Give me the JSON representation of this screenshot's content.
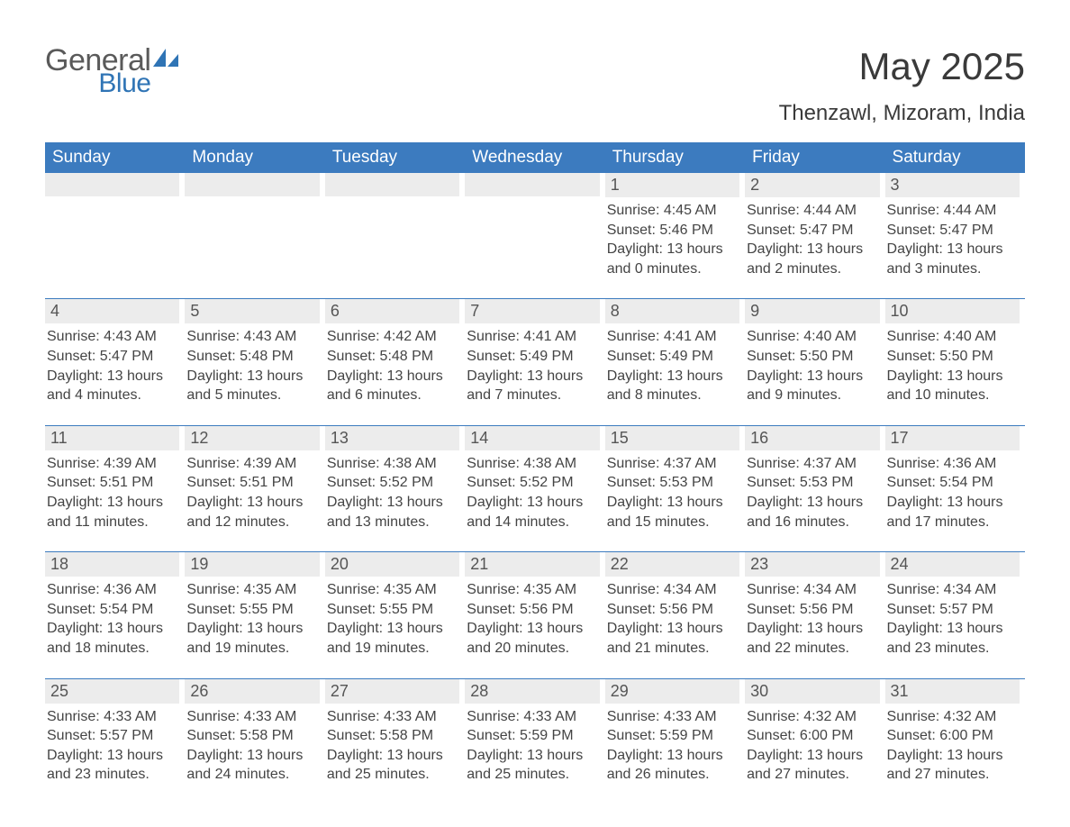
{
  "logo": {
    "general": "General",
    "blue": "Blue"
  },
  "title": "May 2025",
  "subtitle": "Thenzawl, Mizoram, India",
  "colors": {
    "header_bg": "#3c7bbf",
    "header_text": "#ffffff",
    "daynum_bg": "#ececec",
    "week_border": "#3c7bbf",
    "body_text": "#444444",
    "title_text": "#3a3a3a",
    "logo_gray": "#5a5a5a",
    "logo_blue": "#2f74b5",
    "page_bg": "#ffffff"
  },
  "typography": {
    "title_fontsize": 42,
    "subtitle_fontsize": 24,
    "weekday_fontsize": 19,
    "daynum_fontsize": 18,
    "body_fontsize": 16
  },
  "weekdays": [
    "Sunday",
    "Monday",
    "Tuesday",
    "Wednesday",
    "Thursday",
    "Friday",
    "Saturday"
  ],
  "weeks": [
    [
      null,
      null,
      null,
      null,
      {
        "n": "1",
        "sr": "Sunrise: 4:45 AM",
        "ss": "Sunset: 5:46 PM",
        "d1": "Daylight: 13 hours",
        "d2": "and 0 minutes."
      },
      {
        "n": "2",
        "sr": "Sunrise: 4:44 AM",
        "ss": "Sunset: 5:47 PM",
        "d1": "Daylight: 13 hours",
        "d2": "and 2 minutes."
      },
      {
        "n": "3",
        "sr": "Sunrise: 4:44 AM",
        "ss": "Sunset: 5:47 PM",
        "d1": "Daylight: 13 hours",
        "d2": "and 3 minutes."
      }
    ],
    [
      {
        "n": "4",
        "sr": "Sunrise: 4:43 AM",
        "ss": "Sunset: 5:47 PM",
        "d1": "Daylight: 13 hours",
        "d2": "and 4 minutes."
      },
      {
        "n": "5",
        "sr": "Sunrise: 4:43 AM",
        "ss": "Sunset: 5:48 PM",
        "d1": "Daylight: 13 hours",
        "d2": "and 5 minutes."
      },
      {
        "n": "6",
        "sr": "Sunrise: 4:42 AM",
        "ss": "Sunset: 5:48 PM",
        "d1": "Daylight: 13 hours",
        "d2": "and 6 minutes."
      },
      {
        "n": "7",
        "sr": "Sunrise: 4:41 AM",
        "ss": "Sunset: 5:49 PM",
        "d1": "Daylight: 13 hours",
        "d2": "and 7 minutes."
      },
      {
        "n": "8",
        "sr": "Sunrise: 4:41 AM",
        "ss": "Sunset: 5:49 PM",
        "d1": "Daylight: 13 hours",
        "d2": "and 8 minutes."
      },
      {
        "n": "9",
        "sr": "Sunrise: 4:40 AM",
        "ss": "Sunset: 5:50 PM",
        "d1": "Daylight: 13 hours",
        "d2": "and 9 minutes."
      },
      {
        "n": "10",
        "sr": "Sunrise: 4:40 AM",
        "ss": "Sunset: 5:50 PM",
        "d1": "Daylight: 13 hours",
        "d2": "and 10 minutes."
      }
    ],
    [
      {
        "n": "11",
        "sr": "Sunrise: 4:39 AM",
        "ss": "Sunset: 5:51 PM",
        "d1": "Daylight: 13 hours",
        "d2": "and 11 minutes."
      },
      {
        "n": "12",
        "sr": "Sunrise: 4:39 AM",
        "ss": "Sunset: 5:51 PM",
        "d1": "Daylight: 13 hours",
        "d2": "and 12 minutes."
      },
      {
        "n": "13",
        "sr": "Sunrise: 4:38 AM",
        "ss": "Sunset: 5:52 PM",
        "d1": "Daylight: 13 hours",
        "d2": "and 13 minutes."
      },
      {
        "n": "14",
        "sr": "Sunrise: 4:38 AM",
        "ss": "Sunset: 5:52 PM",
        "d1": "Daylight: 13 hours",
        "d2": "and 14 minutes."
      },
      {
        "n": "15",
        "sr": "Sunrise: 4:37 AM",
        "ss": "Sunset: 5:53 PM",
        "d1": "Daylight: 13 hours",
        "d2": "and 15 minutes."
      },
      {
        "n": "16",
        "sr": "Sunrise: 4:37 AM",
        "ss": "Sunset: 5:53 PM",
        "d1": "Daylight: 13 hours",
        "d2": "and 16 minutes."
      },
      {
        "n": "17",
        "sr": "Sunrise: 4:36 AM",
        "ss": "Sunset: 5:54 PM",
        "d1": "Daylight: 13 hours",
        "d2": "and 17 minutes."
      }
    ],
    [
      {
        "n": "18",
        "sr": "Sunrise: 4:36 AM",
        "ss": "Sunset: 5:54 PM",
        "d1": "Daylight: 13 hours",
        "d2": "and 18 minutes."
      },
      {
        "n": "19",
        "sr": "Sunrise: 4:35 AM",
        "ss": "Sunset: 5:55 PM",
        "d1": "Daylight: 13 hours",
        "d2": "and 19 minutes."
      },
      {
        "n": "20",
        "sr": "Sunrise: 4:35 AM",
        "ss": "Sunset: 5:55 PM",
        "d1": "Daylight: 13 hours",
        "d2": "and 19 minutes."
      },
      {
        "n": "21",
        "sr": "Sunrise: 4:35 AM",
        "ss": "Sunset: 5:56 PM",
        "d1": "Daylight: 13 hours",
        "d2": "and 20 minutes."
      },
      {
        "n": "22",
        "sr": "Sunrise: 4:34 AM",
        "ss": "Sunset: 5:56 PM",
        "d1": "Daylight: 13 hours",
        "d2": "and 21 minutes."
      },
      {
        "n": "23",
        "sr": "Sunrise: 4:34 AM",
        "ss": "Sunset: 5:56 PM",
        "d1": "Daylight: 13 hours",
        "d2": "and 22 minutes."
      },
      {
        "n": "24",
        "sr": "Sunrise: 4:34 AM",
        "ss": "Sunset: 5:57 PM",
        "d1": "Daylight: 13 hours",
        "d2": "and 23 minutes."
      }
    ],
    [
      {
        "n": "25",
        "sr": "Sunrise: 4:33 AM",
        "ss": "Sunset: 5:57 PM",
        "d1": "Daylight: 13 hours",
        "d2": "and 23 minutes."
      },
      {
        "n": "26",
        "sr": "Sunrise: 4:33 AM",
        "ss": "Sunset: 5:58 PM",
        "d1": "Daylight: 13 hours",
        "d2": "and 24 minutes."
      },
      {
        "n": "27",
        "sr": "Sunrise: 4:33 AM",
        "ss": "Sunset: 5:58 PM",
        "d1": "Daylight: 13 hours",
        "d2": "and 25 minutes."
      },
      {
        "n": "28",
        "sr": "Sunrise: 4:33 AM",
        "ss": "Sunset: 5:59 PM",
        "d1": "Daylight: 13 hours",
        "d2": "and 25 minutes."
      },
      {
        "n": "29",
        "sr": "Sunrise: 4:33 AM",
        "ss": "Sunset: 5:59 PM",
        "d1": "Daylight: 13 hours",
        "d2": "and 26 minutes."
      },
      {
        "n": "30",
        "sr": "Sunrise: 4:32 AM",
        "ss": "Sunset: 6:00 PM",
        "d1": "Daylight: 13 hours",
        "d2": "and 27 minutes."
      },
      {
        "n": "31",
        "sr": "Sunrise: 4:32 AM",
        "ss": "Sunset: 6:00 PM",
        "d1": "Daylight: 13 hours",
        "d2": "and 27 minutes."
      }
    ]
  ]
}
